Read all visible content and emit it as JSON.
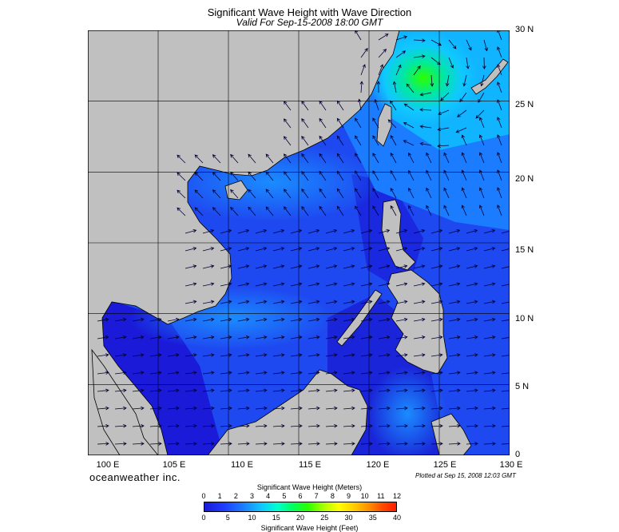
{
  "title": "Significant Wave Height with Wave Direction",
  "subtitle": "Valid For Sep-15-2008 18:00 GMT",
  "brand": "oceanweather inc.",
  "plotted": "Plotted at Sep 15, 2008 12:03 GMT",
  "map": {
    "lon_range": [
      100,
      130
    ],
    "lat_range": [
      0,
      30
    ],
    "lon_labels": [
      "100 E",
      "105 E",
      "110 E",
      "115 E",
      "120 E",
      "125 E",
      "130 E"
    ],
    "lat_labels": [
      "30 N",
      "25 N",
      "20 N",
      "15 N",
      "10 N",
      "5 N",
      "0"
    ],
    "colors": {
      "land": "#c0c0c0",
      "sea_low": "#1a1ad8",
      "sea_mid": "#1e5cff",
      "sea_high": "#10c8ff",
      "peak": "#2aff00",
      "arrow": "#000033"
    }
  },
  "colorbar": {
    "title_meters": "Significant Wave Height (Meters)",
    "title_feet": "Significant Wave Height (Feet)",
    "meters_ticks": [
      "0",
      "1",
      "2",
      "3",
      "4",
      "5",
      "6",
      "7",
      "8",
      "9",
      "10",
      "11",
      "12"
    ],
    "feet_ticks": [
      "0",
      "5",
      "10",
      "15",
      "20",
      "25",
      "30",
      "35",
      "40"
    ]
  }
}
